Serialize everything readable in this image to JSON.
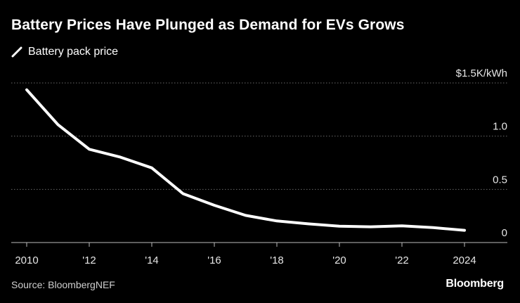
{
  "title": "Battery Prices Have Plunged as Demand for EVs Grows",
  "source": "Source: BloombergNEF",
  "brand": "Bloomberg",
  "chart_data": {
    "type": "line",
    "title": "Battery Prices Have Plunged as Demand for EVs Grows",
    "xlabel": "",
    "ylabel": "",
    "ylim": [
      0,
      1.5
    ],
    "y_unit_label": "$1.5K/kWh",
    "y_ticks": [
      {
        "value": 1.5,
        "label": "$1.5K/kWh"
      },
      {
        "value": 1.0,
        "label": "1.0"
      },
      {
        "value": 0.5,
        "label": "0.5"
      },
      {
        "value": 0,
        "label": "0"
      }
    ],
    "x_ticks": [
      {
        "value": 2010,
        "label": "2010"
      },
      {
        "value": 2012,
        "label": "'12"
      },
      {
        "value": 2014,
        "label": "'14"
      },
      {
        "value": 2016,
        "label": "'16"
      },
      {
        "value": 2018,
        "label": "'18"
      },
      {
        "value": 2020,
        "label": "'20"
      },
      {
        "value": 2022,
        "label": "'22"
      },
      {
        "value": 2024,
        "label": "2024"
      }
    ],
    "grid": true,
    "legend": "top-left",
    "series": [
      {
        "name": "Battery pack price",
        "color": "#ffffff",
        "x": [
          2010,
          2011,
          2012,
          2013,
          2014,
          2015,
          2016,
          2017,
          2018,
          2019,
          2020,
          2021,
          2022,
          2023,
          2024
        ],
        "values": [
          1.436,
          1.108,
          0.877,
          0.802,
          0.702,
          0.459,
          0.35,
          0.255,
          0.203,
          0.176,
          0.154,
          0.148,
          0.157,
          0.14,
          0.115
        ]
      }
    ]
  }
}
